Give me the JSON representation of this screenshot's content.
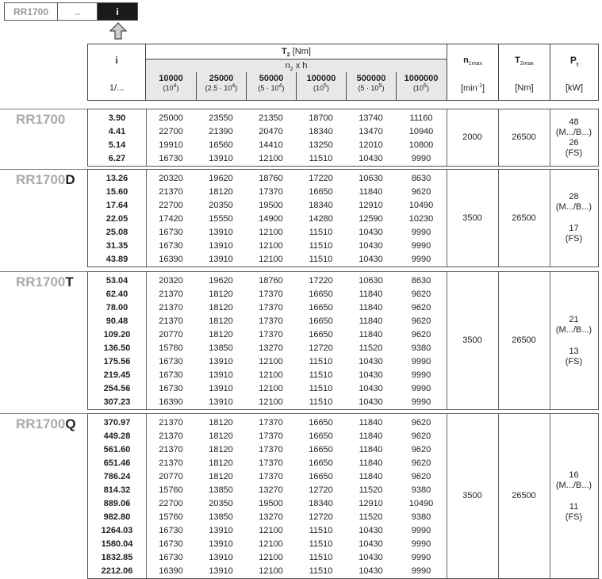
{
  "nav": {
    "items": [
      "RR1700",
      "..",
      "i"
    ],
    "active": "i"
  },
  "header": {
    "i_label": "i",
    "i_unit": "1/...",
    "t2": "T",
    "t2_sub": "2",
    "t2_unit": "[Nm]",
    "n2xh": "n",
    "n2_sub": "2",
    "n2_rest": " x h",
    "cols": [
      {
        "v": "10000",
        "e": "(10",
        "p": "4"
      },
      {
        "v": "25000",
        "e": "(2.5 · 10",
        "p": "4"
      },
      {
        "v": "50000",
        "e": "(5 · 10",
        "p": "4"
      },
      {
        "v": "100000",
        "e": "(10",
        "p": "5"
      },
      {
        "v": "500000",
        "e": "(5 · 10",
        "p": "5"
      },
      {
        "v": "1000000",
        "e": "(10",
        "p": "6"
      }
    ],
    "n1max": "n",
    "n1max_sub": "1max",
    "n1max_unit_a": "[min",
    "n1max_unit_p": "-1",
    "n1max_unit_b": "]",
    "t2max": "T",
    "t2max_sub": "2max",
    "t2max_unit": "[Nm]",
    "pt": "P",
    "pt_sub": "t",
    "pt_unit": "[kW]"
  },
  "sections": [
    {
      "base": "RR1700",
      "suffix": "",
      "n1max": "2000",
      "t2max": "26500",
      "pt": [
        "48",
        "(M.../B...)",
        "26",
        "(FS)"
      ],
      "pt_gap": false,
      "rows": [
        [
          "3.90",
          "25000",
          "23550",
          "21350",
          "18700",
          "13740",
          "11160"
        ],
        [
          "4.41",
          "22700",
          "21390",
          "20470",
          "18340",
          "13470",
          "10940"
        ],
        [
          "5.14",
          "19910",
          "16560",
          "14410",
          "13250",
          "12010",
          "10800"
        ],
        [
          "6.27",
          "16730",
          "13910",
          "12100",
          "11510",
          "10430",
          "9990"
        ]
      ]
    },
    {
      "base": "RR1700",
      "suffix": "D",
      "n1max": "3500",
      "t2max": "26500",
      "pt": [
        "28",
        "(M.../B...)",
        "17",
        "(FS)"
      ],
      "pt_gap": true,
      "rows": [
        [
          "13.26",
          "20320",
          "19620",
          "18760",
          "17220",
          "10630",
          "8630"
        ],
        [
          "15.60",
          "21370",
          "18120",
          "17370",
          "16650",
          "11840",
          "9620"
        ],
        [
          "17.64",
          "22700",
          "20350",
          "19500",
          "18340",
          "12910",
          "10490"
        ],
        [
          "22.05",
          "17420",
          "15550",
          "14900",
          "14280",
          "12590",
          "10230"
        ],
        [
          "25.08",
          "16730",
          "13910",
          "12100",
          "11510",
          "10430",
          "9990"
        ],
        [
          "31.35",
          "16730",
          "13910",
          "12100",
          "11510",
          "10430",
          "9990"
        ],
        [
          "43.89",
          "16390",
          "13910",
          "12100",
          "11510",
          "10430",
          "9990"
        ]
      ]
    },
    {
      "base": "RR1700",
      "suffix": "T",
      "n1max": "3500",
      "t2max": "26500",
      "pt": [
        "21",
        "(M.../B...)",
        "13",
        "(FS)"
      ],
      "pt_gap": true,
      "rows": [
        [
          "53.04",
          "20320",
          "19620",
          "18760",
          "17220",
          "10630",
          "8630"
        ],
        [
          "62.40",
          "21370",
          "18120",
          "17370",
          "16650",
          "11840",
          "9620"
        ],
        [
          "78.00",
          "21370",
          "18120",
          "17370",
          "16650",
          "11840",
          "9620"
        ],
        [
          "90.48",
          "21370",
          "18120",
          "17370",
          "16650",
          "11840",
          "9620"
        ],
        [
          "109.20",
          "20770",
          "18120",
          "17370",
          "16650",
          "11840",
          "9620"
        ],
        [
          "136.50",
          "15760",
          "13850",
          "13270",
          "12720",
          "11520",
          "9380"
        ],
        [
          "175.56",
          "16730",
          "13910",
          "12100",
          "11510",
          "10430",
          "9990"
        ],
        [
          "219.45",
          "16730",
          "13910",
          "12100",
          "11510",
          "10430",
          "9990"
        ],
        [
          "254.56",
          "16730",
          "13910",
          "12100",
          "11510",
          "10430",
          "9990"
        ],
        [
          "307.23",
          "16390",
          "13910",
          "12100",
          "11510",
          "10430",
          "9990"
        ]
      ]
    },
    {
      "base": "RR1700",
      "suffix": "Q",
      "n1max": "3500",
      "t2max": "26500",
      "pt": [
        "16",
        "(M.../B...)",
        "11",
        "(FS)"
      ],
      "pt_gap": true,
      "rows": [
        [
          "370.97",
          "21370",
          "18120",
          "17370",
          "16650",
          "11840",
          "9620"
        ],
        [
          "449.28",
          "21370",
          "18120",
          "17370",
          "16650",
          "11840",
          "9620"
        ],
        [
          "561.60",
          "21370",
          "18120",
          "17370",
          "16650",
          "11840",
          "9620"
        ],
        [
          "651.46",
          "21370",
          "18120",
          "17370",
          "16650",
          "11840",
          "9620"
        ],
        [
          "786.24",
          "20770",
          "18120",
          "17370",
          "16650",
          "11840",
          "9620"
        ],
        [
          "814.32",
          "15760",
          "13850",
          "13270",
          "12720",
          "11520",
          "9380"
        ],
        [
          "889.06",
          "22700",
          "20350",
          "19500",
          "18340",
          "12910",
          "10490"
        ],
        [
          "982.80",
          "15760",
          "13850",
          "13270",
          "12720",
          "11520",
          "9380"
        ],
        [
          "1264.03",
          "16730",
          "13910",
          "12100",
          "11510",
          "10430",
          "9990"
        ],
        [
          "1580.04",
          "16730",
          "13910",
          "12100",
          "11510",
          "10430",
          "9990"
        ],
        [
          "1832.85",
          "16730",
          "13910",
          "12100",
          "11510",
          "10430",
          "9990"
        ],
        [
          "2212.06",
          "16390",
          "13910",
          "12100",
          "11510",
          "10430",
          "9990"
        ]
      ]
    }
  ]
}
